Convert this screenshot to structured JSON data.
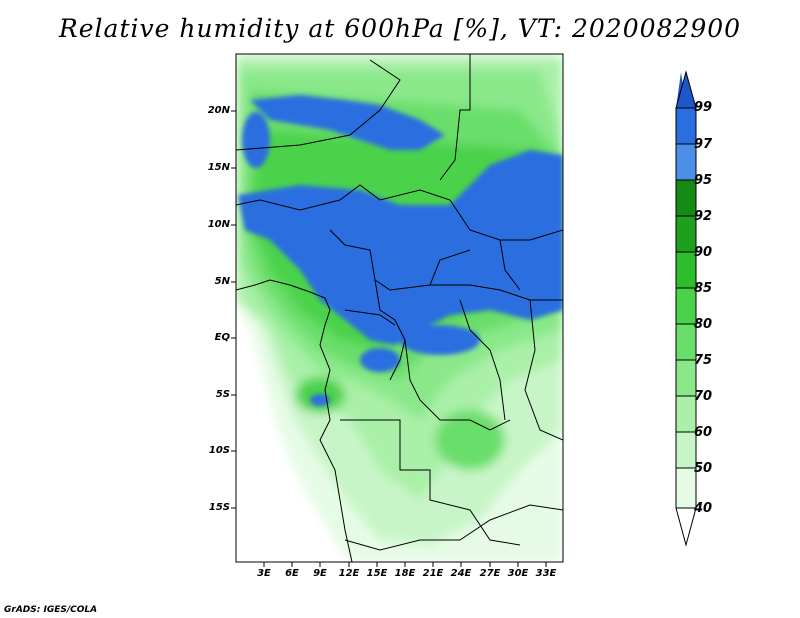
{
  "title": "Relative humidity at 600hPa [%], VT: 2020082900",
  "credit": "GrADS: IGES/COLA",
  "map": {
    "lat_labels": [
      "20N",
      "15N",
      "10N",
      "5N",
      "EQ",
      "5S",
      "10S",
      "15S"
    ],
    "lon_labels": [
      "3E",
      "6E",
      "9E",
      "12E",
      "15E",
      "18E",
      "21E",
      "24E",
      "27E",
      "30E",
      "33E"
    ]
  },
  "colorbar": {
    "levels": [
      "40",
      "50",
      "60",
      "70",
      "75",
      "80",
      "85",
      "90",
      "92",
      "95",
      "97",
      "99"
    ],
    "colors": [
      "#ffffff",
      "#e6fbe6",
      "#c8f5c8",
      "#aaf0a8",
      "#8ae88a",
      "#6ade6a",
      "#4bd24b",
      "#2dbd2d",
      "#1ea01e",
      "#148a14",
      "#4b8fe8",
      "#2a6ee0",
      "#1e58c8"
    ]
  }
}
